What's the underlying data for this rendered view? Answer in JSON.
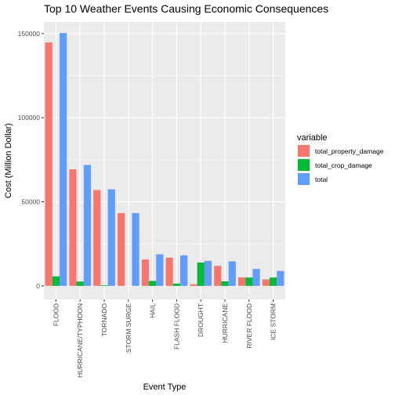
{
  "chart_data": {
    "type": "bar",
    "title": "Top 10 Weather Events Causing Economic Consequences",
    "xlabel": "Event Type",
    "ylabel": "Cost (Million Dollar)",
    "ylim": [
      0,
      155000
    ],
    "yticks": [
      0,
      50000,
      100000,
      150000
    ],
    "grid": true,
    "legend": {
      "title": "variable",
      "position": "right"
    },
    "categories": [
      "FLOOD",
      "HURRICANE/TYPHOON",
      "TORNADO",
      "STORM SURGE",
      "HAIL",
      "FLASH FLOOD",
      "DROUGHT",
      "HURRICANE",
      "RIVER FLOOD",
      "ICE STORM"
    ],
    "series": [
      {
        "name": "total_property_damage",
        "color": "#F8766D",
        "values": [
          144700,
          69300,
          57000,
          43300,
          15700,
          16800,
          1000,
          11900,
          5100,
          3900
        ]
      },
      {
        "name": "total_crop_damage",
        "color": "#00BA38",
        "values": [
          5700,
          2600,
          400,
          0,
          3000,
          1400,
          13900,
          2700,
          5000,
          5000
        ]
      },
      {
        "name": "total",
        "color": "#619CFF",
        "values": [
          150300,
          71900,
          57400,
          43300,
          18800,
          18200,
          14900,
          14600,
          10100,
          8900
        ]
      }
    ]
  }
}
